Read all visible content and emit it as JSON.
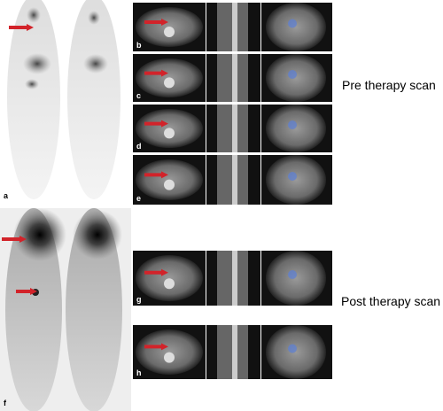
{
  "labels": [
    "a",
    "b",
    "c",
    "d",
    "e",
    "f",
    "g",
    "h"
  ],
  "captions": {
    "pre": "Pre therapy scan",
    "post": "Post therapy scan"
  }
}
